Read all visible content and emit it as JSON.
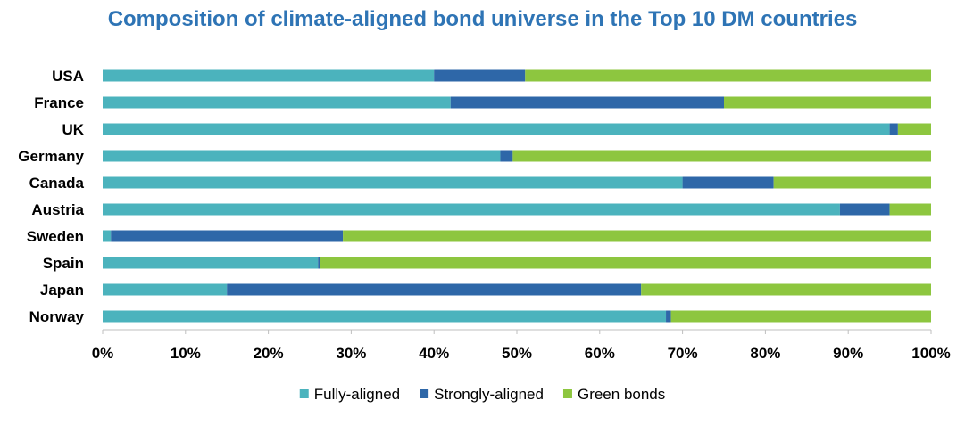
{
  "chart_data": {
    "type": "bar",
    "orientation": "horizontal",
    "stacked": true,
    "title": "Composition of climate-aligned bond universe in the Top 10 DM countries",
    "categories": [
      "USA",
      "France",
      "UK",
      "Germany",
      "Canada",
      "Austria",
      "Sweden",
      "Spain",
      "Japan",
      "Norway"
    ],
    "series": [
      {
        "name": "Fully-aligned",
        "color": "#4bb3bd",
        "values": [
          40,
          42,
          95,
          48,
          70,
          89,
          1,
          26,
          15,
          68
        ]
      },
      {
        "name": "Strongly-aligned",
        "color": "#2e67a8",
        "values": [
          11,
          33,
          1,
          1.5,
          11,
          6,
          28,
          0.2,
          50,
          0.6
        ]
      },
      {
        "name": "Green bonds",
        "color": "#8dc63f",
        "values": [
          49,
          25,
          4,
          50.5,
          19,
          5,
          71,
          73.8,
          35,
          31.4
        ]
      }
    ],
    "xlim": [
      0,
      100
    ],
    "xticks": [
      "0%",
      "10%",
      "20%",
      "30%",
      "40%",
      "50%",
      "60%",
      "70%",
      "80%",
      "90%",
      "100%"
    ],
    "xlabel": "",
    "ylabel": "",
    "grid": false,
    "legend_position": "bottom"
  }
}
